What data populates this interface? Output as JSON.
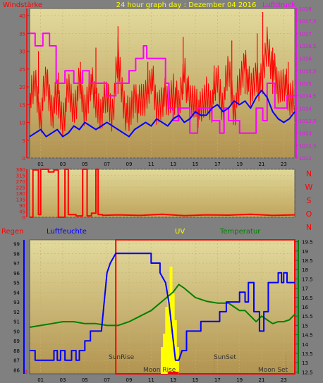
{
  "header": {
    "left_label": "Windstärke",
    "title": "24 hour graph day : Dezember 04 2016",
    "right_label": "Luftdruck"
  },
  "colors": {
    "frame": "#7f7f7f",
    "plot_bg_top": "#e0d898",
    "plot_bg_bottom": "#b09048",
    "wind": "#ff0000",
    "windavg": "#0000ff",
    "pressure": "#ff00ff",
    "winddir": "#ff0000",
    "humidity": "#0000ff",
    "temperature": "#008000",
    "uv": "#ffff00",
    "rain": "#ff0000",
    "axis_text_left": "#ff0000",
    "axis_text_right": "#ff00ff"
  },
  "compass": [
    "N",
    "W",
    "S",
    "O",
    "N"
  ],
  "bottom_header": {
    "rain": "Regen",
    "humidity": "Luftfeuchte",
    "uv": "UV",
    "temperature": "Temperatur"
  },
  "annotations": {
    "sunrise": "SunRise",
    "sunset": "SunSet",
    "moonrise": "Moon Rise",
    "moonset": "Moon Set"
  },
  "chart_data": [
    {
      "type": "line",
      "title": "24 hour graph day : Dezember 04 2016",
      "x_ticks": [
        "01",
        "03",
        "05",
        "07",
        "09",
        "11",
        "13",
        "15",
        "17",
        "19",
        "21",
        "23"
      ],
      "xlim": [
        0,
        24
      ],
      "y_left": {
        "label": "Windstärke",
        "ticks": [
          0,
          5,
          10,
          15,
          20,
          25,
          30,
          35,
          40
        ],
        "ylim": [
          0,
          42
        ]
      },
      "y_right": {
        "label": "Luftdruck",
        "ticks": [
          "1012",
          "1012,5",
          "1013",
          "1013,5",
          "1014",
          "1014,5",
          "1015",
          "1015,5",
          "1016",
          "1016,5",
          "1017",
          "1017,5",
          "1018"
        ],
        "ylim": [
          1012,
          1018
        ]
      },
      "series": [
        {
          "key": "wind",
          "axis": "left",
          "x": [
            0,
            0.5,
            1,
            1.5,
            2,
            2.5,
            3,
            3.5,
            4,
            4.5,
            5,
            5.5,
            6,
            6.5,
            7,
            7.5,
            8,
            8.5,
            9,
            9.5,
            10,
            10.5,
            11,
            11.5,
            12,
            12.5,
            13,
            13.5,
            14,
            14.5,
            15,
            15.5,
            16,
            16.5,
            17,
            17.5,
            18,
            18.5,
            19,
            19.5,
            20,
            20.5,
            21,
            21.5,
            22,
            22.5,
            23,
            23.5,
            24
          ],
          "y": [
            15,
            21,
            12,
            22,
            14,
            16,
            11,
            18,
            14,
            20,
            13,
            22,
            15,
            14,
            17,
            13,
            28,
            16,
            10,
            18,
            14,
            17,
            24,
            13,
            18,
            15,
            20,
            13,
            26,
            14,
            17,
            12,
            18,
            16,
            22,
            15,
            25,
            14,
            19,
            28,
            17,
            24,
            20,
            32,
            26,
            19,
            23,
            15,
            20
          ]
        },
        {
          "key": "wind_gust",
          "axis": "left",
          "x": [
            0.8,
            2.6,
            4.6,
            6.0,
            8.0,
            10.7,
            13.9,
            16.7,
            18.3,
            19.5,
            20.6,
            21.1,
            22.0,
            23.4
          ],
          "y": [
            30,
            24,
            27,
            31,
            37,
            27,
            34,
            26,
            33,
            29,
            35,
            41,
            31,
            27
          ]
        },
        {
          "key": "windavg",
          "axis": "left",
          "x": [
            0,
            0.5,
            1,
            1.5,
            2,
            2.5,
            3,
            3.5,
            4,
            4.5,
            5,
            5.5,
            6,
            6.5,
            7,
            7.5,
            8,
            8.5,
            9,
            9.5,
            10,
            10.5,
            11,
            11.5,
            12,
            12.5,
            13,
            13.5,
            14,
            14.5,
            15,
            15.5,
            16,
            16.5,
            17,
            17.5,
            18,
            18.5,
            19,
            19.5,
            20,
            20.5,
            21,
            21.5,
            22,
            22.5,
            23,
            23.5,
            24
          ],
          "y": [
            6,
            7,
            8,
            6,
            7,
            8,
            6,
            7,
            9,
            8,
            10,
            9,
            8,
            9,
            10,
            9,
            8,
            7,
            6,
            8,
            9,
            10,
            9,
            11,
            10,
            9,
            11,
            12,
            10,
            11,
            13,
            12,
            12,
            14,
            15,
            13,
            14,
            16,
            15,
            16,
            14,
            17,
            19,
            17,
            13,
            11,
            10,
            11,
            13
          ]
        },
        {
          "key": "pressure",
          "axis": "right",
          "x": [
            0,
            0.5,
            0.5,
            1.2,
            1.2,
            1.8,
            1.8,
            2.4,
            2.4,
            3.2,
            3.2,
            4.0,
            4.0,
            4.8,
            4.8,
            5.4,
            5.4,
            7.0,
            7.0,
            7.8,
            7.8,
            9.0,
            9.0,
            9.6,
            9.6,
            10.3,
            10.3,
            10.6,
            10.6,
            12.3,
            12.3,
            12.6,
            12.6,
            13.0,
            13.0,
            13.5,
            13.5,
            14.5,
            14.5,
            15.2,
            15.2,
            16.5,
            16.5,
            17.2,
            17.2,
            17.6,
            17.6,
            18.0,
            18.0,
            19.0,
            19.0,
            20.5,
            20.5,
            21.1,
            21.1,
            21.5,
            21.5,
            22.2,
            22.2,
            23.3,
            23.3,
            24
          ],
          "y": [
            1017,
            1017,
            1016.5,
            1016.5,
            1017,
            1017,
            1016.5,
            1016.5,
            1015,
            1015,
            1015.5,
            1015.5,
            1015,
            1015,
            1015.5,
            1015.5,
            1015,
            1015,
            1014.5,
            1014.5,
            1015,
            1015,
            1015.5,
            1015.5,
            1016,
            1016,
            1016.5,
            1016.5,
            1016,
            1016,
            1015,
            1015,
            1014,
            1014,
            1013.5,
            1013.5,
            1014,
            1014,
            1013,
            1013,
            1014,
            1014,
            1013.5,
            1013.5,
            1013,
            1013,
            1014,
            1014,
            1013.5,
            1013.5,
            1013,
            1013,
            1014,
            1014,
            1013.5,
            1013.5,
            1015,
            1015,
            1014,
            1014,
            1014.5,
            1014.5
          ]
        }
      ]
    },
    {
      "type": "line",
      "title": "",
      "y_left": {
        "ticks": [
          0,
          45,
          90,
          135,
          180,
          225,
          270,
          315,
          360
        ],
        "ylim": [
          0,
          360
        ]
      },
      "xlim": [
        0,
        24
      ],
      "series": [
        {
          "key": "winddir",
          "axis": "left",
          "x": [
            0,
            0.3,
            0.3,
            0.8,
            0.8,
            1.0,
            1.0,
            1.7,
            1.7,
            2.2,
            2.2,
            2.6,
            2.6,
            3.2,
            3.2,
            3.5,
            3.5,
            4.2,
            4.2,
            4.8,
            4.8,
            5.2,
            5.2,
            5.6,
            5.6,
            6.0,
            6.0,
            6.2,
            6.2,
            6.6,
            6.6,
            8,
            10,
            12,
            14,
            16,
            18,
            20,
            22,
            24
          ],
          "y": [
            0,
            0,
            355,
            355,
            20,
            20,
            360,
            360,
            340,
            340,
            355,
            355,
            0,
            0,
            360,
            360,
            20,
            20,
            10,
            10,
            360,
            360,
            10,
            10,
            30,
            30,
            360,
            360,
            20,
            20,
            15,
            18,
            14,
            22,
            12,
            18,
            16,
            22,
            14,
            18
          ]
        }
      ]
    },
    {
      "type": "line",
      "title": "",
      "xlim": [
        0,
        24
      ],
      "x_ticks": [
        "01",
        "03",
        "05",
        "07",
        "09",
        "11",
        "13",
        "15",
        "17",
        "19",
        "21",
        "23"
      ],
      "y_left": {
        "label": "Regen",
        "ticks": [
          0
        ],
        "ylim": [
          0,
          0.1
        ]
      },
      "y_humidity": {
        "label": "Luftfeuchte",
        "ticks": [
          86,
          87,
          88,
          89,
          90,
          91,
          92,
          93,
          94,
          95,
          96,
          97,
          98,
          99
        ],
        "ylim": [
          85.6,
          99.4
        ]
      },
      "y_right": {
        "label": "Temperatur",
        "ticks": [
          12.5,
          13,
          13.5,
          14,
          14.5,
          15,
          15.5,
          16,
          16.5,
          17,
          17.5,
          18,
          18.5,
          19,
          19.5
        ],
        "ylim": [
          12.4,
          19.6
        ]
      },
      "series": [
        {
          "key": "humidity",
          "axis": "humidity",
          "x": [
            0,
            0.5,
            0.5,
            2.2,
            2.2,
            2.5,
            2.5,
            2.8,
            2.8,
            3.2,
            3.2,
            3.8,
            3.8,
            4.2,
            4.2,
            4.5,
            4.5,
            5.0,
            5.0,
            5.5,
            5.5,
            6.5,
            7.0,
            7.3,
            7.8,
            11.0,
            11.0,
            11.8,
            11.8,
            12.3,
            12.6,
            13.0,
            13.2,
            13.5,
            13.8,
            14.2,
            14.2,
            15.5,
            15.5,
            17.2,
            17.2,
            17.8,
            17.8,
            19.0,
            19.0,
            19.5,
            19.5,
            19.8,
            19.8,
            20.3,
            20.3,
            20.8,
            20.8,
            21.2,
            21.2,
            21.6,
            21.6,
            22.5,
            22.5,
            22.8,
            22.8,
            23.0,
            23.0,
            23.3,
            23.3,
            24
          ],
          "y": [
            88,
            88,
            87,
            87,
            88,
            88,
            87,
            87,
            88,
            88,
            87,
            87,
            88,
            88,
            87,
            87,
            88,
            88,
            89,
            89,
            90,
            90,
            96,
            97,
            98,
            98,
            97,
            97,
            96,
            95,
            93,
            89,
            87,
            87,
            88,
            88,
            90,
            90,
            91,
            91,
            92,
            92,
            93,
            93,
            94,
            94,
            93,
            93,
            95,
            95,
            92,
            92,
            90,
            90,
            92,
            92,
            95,
            95,
            96,
            96,
            95,
            95,
            96,
            96,
            95,
            95
          ]
        },
        {
          "key": "temperature",
          "axis": "right",
          "x": [
            0,
            1,
            2,
            3,
            4,
            5,
            6,
            7,
            8,
            9,
            10,
            11,
            12,
            13,
            13.5,
            14,
            15,
            16,
            17,
            18,
            18.5,
            19,
            19.5,
            20,
            20.5,
            21,
            21.5,
            22,
            22.5,
            23,
            23.5,
            24
          ],
          "y": [
            14.9,
            15.0,
            15.1,
            15.2,
            15.2,
            15.1,
            15.1,
            15.0,
            15.0,
            15.2,
            15.5,
            15.8,
            16.3,
            16.8,
            17.2,
            17.0,
            16.5,
            16.3,
            16.2,
            16.2,
            16.0,
            15.8,
            15.8,
            15.5,
            15.2,
            15.5,
            15.3,
            15.1,
            15.2,
            15.2,
            15.3,
            15.6
          ]
        },
        {
          "key": "uv",
          "axis": "left",
          "type": "bar",
          "x": [
            12.0,
            12.2,
            12.4,
            12.6,
            12.8,
            13.0,
            13.2,
            13.4
          ],
          "y": [
            0.02,
            0.03,
            0.05,
            0.06,
            0.08,
            0.06,
            0.04,
            0.02
          ]
        }
      ],
      "rain_bar": {
        "start": 12.5,
        "end": 13.5
      },
      "sunrise_hour": 7.8,
      "sunset_hour": 16.7,
      "moonrise_hour": 13.0,
      "moonset_hour": 23.2,
      "day_box": {
        "start": 7.8,
        "end": 24
      }
    }
  ]
}
